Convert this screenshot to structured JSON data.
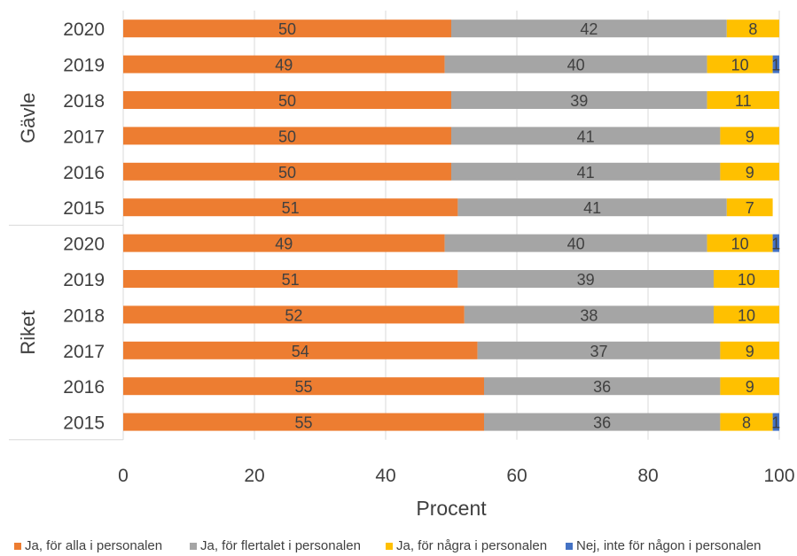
{
  "chart_data": {
    "type": "bar",
    "orientation": "horizontal",
    "stacked": true,
    "xlabel": "Procent",
    "xlim": [
      0,
      100
    ],
    "xticks": [
      "0",
      "20",
      "40",
      "60",
      "80",
      "100"
    ],
    "groups": [
      "Gävle",
      "Riket"
    ],
    "categories": [
      {
        "group": "Gävle",
        "year": "2020"
      },
      {
        "group": "Gävle",
        "year": "2019"
      },
      {
        "group": "Gävle",
        "year": "2018"
      },
      {
        "group": "Gävle",
        "year": "2017"
      },
      {
        "group": "Gävle",
        "year": "2016"
      },
      {
        "group": "Gävle",
        "year": "2015"
      },
      {
        "group": "Riket",
        "year": "2020"
      },
      {
        "group": "Riket",
        "year": "2019"
      },
      {
        "group": "Riket",
        "year": "2018"
      },
      {
        "group": "Riket",
        "year": "2017"
      },
      {
        "group": "Riket",
        "year": "2016"
      },
      {
        "group": "Riket",
        "year": "2015"
      }
    ],
    "series": [
      {
        "name": "Ja, för alla i personalen",
        "color": "#ED7D31",
        "values": [
          50,
          49,
          50,
          50,
          50,
          51,
          49,
          51,
          52,
          54,
          55,
          55
        ]
      },
      {
        "name": "Ja, för flertalet i personalen",
        "color": "#A5A5A5",
        "values": [
          42,
          40,
          39,
          41,
          41,
          41,
          40,
          39,
          38,
          37,
          36,
          36
        ]
      },
      {
        "name": "Ja, för några i personalen",
        "color": "#FFC000",
        "values": [
          8,
          10,
          11,
          9,
          9,
          7,
          10,
          10,
          10,
          9,
          9,
          8
        ]
      },
      {
        "name": "Nej, inte för någon i personalen",
        "color": "#4472C4",
        "values": [
          0,
          1,
          0,
          0,
          0,
          0,
          1,
          0,
          0,
          0,
          0,
          1
        ]
      }
    ],
    "grid": true,
    "legend_position": "bottom"
  }
}
